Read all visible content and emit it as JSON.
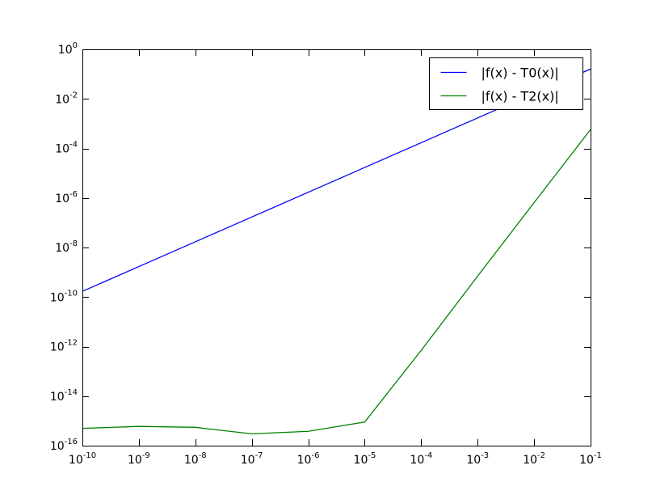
{
  "chart_data": {
    "type": "line",
    "title": "",
    "xlabel": "",
    "ylabel": "",
    "xscale": "log",
    "yscale": "log",
    "xlim": [
      1e-10,
      0.1
    ],
    "ylim": [
      1e-16,
      1
    ],
    "grid": false,
    "legend_position": "top-right",
    "x_ticks": [
      {
        "base": "10",
        "exp": "-10"
      },
      {
        "base": "10",
        "exp": "-9"
      },
      {
        "base": "10",
        "exp": "-8"
      },
      {
        "base": "10",
        "exp": "-7"
      },
      {
        "base": "10",
        "exp": "-6"
      },
      {
        "base": "10",
        "exp": "-5"
      },
      {
        "base": "10",
        "exp": "-4"
      },
      {
        "base": "10",
        "exp": "-3"
      },
      {
        "base": "10",
        "exp": "-2"
      },
      {
        "base": "10",
        "exp": "-1"
      }
    ],
    "y_ticks": [
      {
        "base": "10",
        "exp": "-16"
      },
      {
        "base": "10",
        "exp": "-14"
      },
      {
        "base": "10",
        "exp": "-12"
      },
      {
        "base": "10",
        "exp": "-10"
      },
      {
        "base": "10",
        "exp": "-8"
      },
      {
        "base": "10",
        "exp": "-6"
      },
      {
        "base": "10",
        "exp": "-4"
      },
      {
        "base": "10",
        "exp": "-2"
      },
      {
        "base": "10",
        "exp": "0"
      }
    ],
    "x": [
      1e-10,
      1e-09,
      1e-08,
      1e-07,
      1e-06,
      1e-05,
      0.0001,
      0.001,
      0.01,
      0.1
    ],
    "series": [
      {
        "name": "|f(x) - T0(x)|",
        "color": "#0000ff",
        "values": [
          1.7e-10,
          1.7e-09,
          1.7e-08,
          1.7e-07,
          1.7e-06,
          1.7e-05,
          0.00017,
          0.0017,
          0.017,
          0.16
        ]
      },
      {
        "name": "|f(x) - T2(x)|",
        "color": "#008000",
        "values": [
          5e-16,
          6e-16,
          5.5e-16,
          3e-16,
          3.8e-16,
          9e-16,
          7e-13,
          7e-10,
          6.5e-07,
          0.00058
        ]
      }
    ]
  }
}
